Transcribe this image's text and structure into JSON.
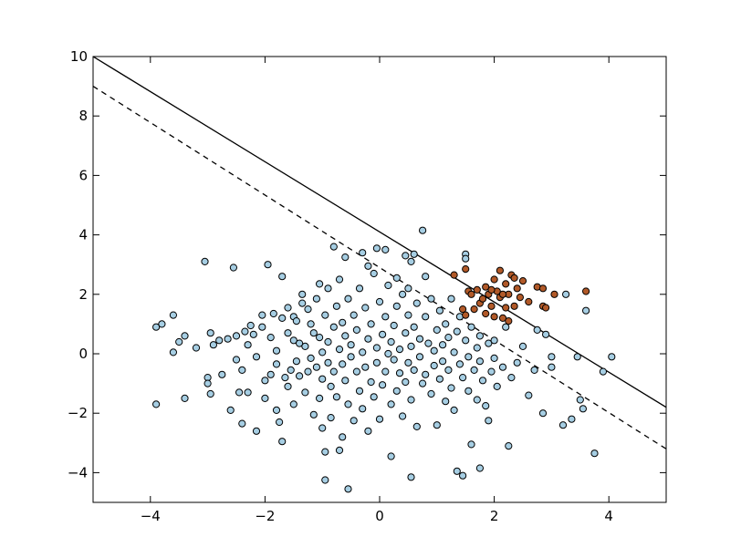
{
  "chart_data": {
    "type": "scatter",
    "title": "",
    "xlabel": "",
    "ylabel": "",
    "xlim": [
      -5,
      5
    ],
    "ylim": [
      -5,
      10
    ],
    "grid": false,
    "x_ticks": [
      -4,
      -2,
      0,
      2,
      4
    ],
    "x_tick_labels": [
      "−4",
      "−2",
      "0",
      "2",
      "4"
    ],
    "y_ticks": [
      -4,
      -2,
      0,
      2,
      4,
      6,
      8,
      10
    ],
    "y_tick_labels": [
      "−4",
      "−2",
      "0",
      "2",
      "4",
      "6",
      "8",
      "10"
    ],
    "colors": {
      "class_0_fill": "#a6cee3",
      "class_1_fill": "#b15928",
      "point_edge": "#000000",
      "line": "#000000",
      "frame": "#000000"
    },
    "lines": [
      {
        "style": "solid",
        "x": [
          -5,
          5
        ],
        "y": [
          10.0,
          -1.8
        ]
      },
      {
        "style": "dashed",
        "x": [
          -5,
          5
        ],
        "y": [
          9.0,
          -3.2
        ]
      }
    ],
    "series": [
      {
        "class": 0,
        "points": [
          [
            -3.9,
            -1.7
          ],
          [
            -3.9,
            0.9
          ],
          [
            -3.8,
            1.0
          ],
          [
            -3.6,
            1.3
          ],
          [
            -3.6,
            0.05
          ],
          [
            -3.5,
            0.4
          ],
          [
            -3.4,
            -1.5
          ],
          [
            -3.4,
            0.6
          ],
          [
            -3.2,
            0.2
          ],
          [
            -3.05,
            3.1
          ],
          [
            -3.0,
            -0.8
          ],
          [
            -3.0,
            -1.0
          ],
          [
            -2.95,
            0.7
          ],
          [
            -2.95,
            -1.35
          ],
          [
            -2.9,
            0.3
          ],
          [
            -2.8,
            0.45
          ],
          [
            -2.75,
            -0.7
          ],
          [
            -2.65,
            0.5
          ],
          [
            -2.6,
            -1.9
          ],
          [
            -2.55,
            2.9
          ],
          [
            -2.5,
            0.6
          ],
          [
            -2.5,
            -0.2
          ],
          [
            -2.45,
            -1.3
          ],
          [
            -2.4,
            -0.55
          ],
          [
            -2.4,
            -2.35
          ],
          [
            -2.35,
            0.75
          ],
          [
            -2.3,
            0.3
          ],
          [
            -2.3,
            -1.3
          ],
          [
            -2.25,
            0.95
          ],
          [
            -2.2,
            0.65
          ],
          [
            -2.15,
            -0.1
          ],
          [
            -2.15,
            -2.6
          ],
          [
            -2.05,
            0.9
          ],
          [
            -2.05,
            1.3
          ],
          [
            -2.0,
            -0.9
          ],
          [
            -2.0,
            -1.5
          ],
          [
            -1.95,
            3.0
          ],
          [
            -1.9,
            0.55
          ],
          [
            -1.9,
            -0.7
          ],
          [
            -1.85,
            1.35
          ],
          [
            -1.8,
            -0.35
          ],
          [
            -1.8,
            0.1
          ],
          [
            -1.8,
            -1.9
          ],
          [
            -1.75,
            -2.3
          ],
          [
            -1.7,
            1.2
          ],
          [
            -1.7,
            2.6
          ],
          [
            -1.7,
            -2.95
          ],
          [
            -1.65,
            -0.8
          ],
          [
            -1.6,
            0.7
          ],
          [
            -1.6,
            1.55
          ],
          [
            -1.6,
            -1.1
          ],
          [
            -1.55,
            -0.55
          ],
          [
            -1.5,
            0.45
          ],
          [
            -1.5,
            1.25
          ],
          [
            -1.5,
            -1.7
          ],
          [
            -1.45,
            -0.25
          ],
          [
            -1.45,
            1.1
          ],
          [
            -1.4,
            0.35
          ],
          [
            -1.4,
            -0.75
          ],
          [
            -1.35,
            1.7
          ],
          [
            -1.35,
            2.0
          ],
          [
            -1.3,
            -1.3
          ],
          [
            -1.3,
            0.25
          ],
          [
            -1.25,
            -0.6
          ],
          [
            -1.25,
            1.5
          ],
          [
            -1.2,
            -0.15
          ],
          [
            -1.2,
            1.0
          ],
          [
            -1.15,
            -2.05
          ],
          [
            -1.15,
            0.7
          ],
          [
            -1.1,
            -0.45
          ],
          [
            -1.1,
            1.85
          ],
          [
            -1.05,
            -1.5
          ],
          [
            -1.05,
            0.55
          ],
          [
            -1.05,
            2.35
          ],
          [
            -1.0,
            -0.85
          ],
          [
            -1.0,
            0.05
          ],
          [
            -1.0,
            -2.5
          ],
          [
            -0.95,
            1.3
          ],
          [
            -0.9,
            -0.3
          ],
          [
            -0.9,
            0.4
          ],
          [
            -0.9,
            2.2
          ],
          [
            -0.85,
            -1.1
          ],
          [
            -0.85,
            -2.15
          ],
          [
            -0.8,
            0.9
          ],
          [
            -0.8,
            -0.6
          ],
          [
            -0.75,
            1.6
          ],
          [
            -0.75,
            -1.45
          ],
          [
            -0.7,
            0.15
          ],
          [
            -0.7,
            2.5
          ],
          [
            -0.65,
            -0.35
          ],
          [
            -0.65,
            -2.8
          ],
          [
            -0.65,
            1.05
          ],
          [
            -0.6,
            -0.9
          ],
          [
            -0.6,
            0.6
          ],
          [
            -0.55,
            1.85
          ],
          [
            -0.55,
            -1.7
          ],
          [
            -0.5,
            -0.1
          ],
          [
            -0.5,
            0.3
          ],
          [
            -0.45,
            -2.25
          ],
          [
            -0.45,
            1.3
          ],
          [
            -0.4,
            -0.6
          ],
          [
            -0.4,
            0.8
          ],
          [
            -0.35,
            -1.25
          ],
          [
            -0.35,
            2.2
          ],
          [
            -0.3,
            0.05
          ],
          [
            -0.3,
            -1.85
          ],
          [
            -0.25,
            1.55
          ],
          [
            -0.25,
            -0.45
          ],
          [
            -0.2,
            0.5
          ],
          [
            -0.2,
            -2.6
          ],
          [
            -0.15,
            1.0
          ],
          [
            -0.15,
            -0.95
          ],
          [
            -0.1,
            -1.45
          ],
          [
            -0.1,
            2.7
          ],
          [
            -0.05,
            0.2
          ],
          [
            -0.05,
            -0.3
          ],
          [
            0.0,
            1.75
          ],
          [
            0.0,
            -2.2
          ],
          [
            0.05,
            0.65
          ],
          [
            0.05,
            -1.05
          ],
          [
            0.1,
            -0.6
          ],
          [
            0.1,
            1.25
          ],
          [
            0.15,
            0.0
          ],
          [
            0.15,
            2.3
          ],
          [
            0.2,
            -1.7
          ],
          [
            0.2,
            0.4
          ],
          [
            0.25,
            -0.2
          ],
          [
            0.25,
            0.95
          ],
          [
            0.3,
            -1.25
          ],
          [
            0.3,
            1.6
          ],
          [
            0.35,
            -0.65
          ],
          [
            0.35,
            0.15
          ],
          [
            0.4,
            2.0
          ],
          [
            0.4,
            -2.1
          ],
          [
            0.45,
            0.7
          ],
          [
            0.45,
            -0.95
          ],
          [
            0.5,
            -0.3
          ],
          [
            0.5,
            1.3
          ],
          [
            0.55,
            -1.55
          ],
          [
            0.55,
            0.25
          ],
          [
            0.6,
            0.9
          ],
          [
            0.6,
            -0.55
          ],
          [
            0.65,
            1.7
          ],
          [
            0.65,
            -2.45
          ],
          [
            0.7,
            0.5
          ],
          [
            0.7,
            -0.1
          ],
          [
            0.75,
            4.15
          ],
          [
            0.75,
            -1.0
          ],
          [
            0.8,
            1.25
          ],
          [
            0.8,
            -0.7
          ],
          [
            0.85,
            0.35
          ],
          [
            0.9,
            -1.35
          ],
          [
            0.9,
            1.85
          ],
          [
            0.95,
            0.1
          ],
          [
            0.95,
            -0.4
          ],
          [
            1.0,
            0.8
          ],
          [
            1.0,
            -2.4
          ],
          [
            1.05,
            -0.85
          ],
          [
            1.05,
            1.45
          ],
          [
            1.1,
            0.3
          ],
          [
            1.1,
            -0.25
          ],
          [
            1.15,
            -1.6
          ],
          [
            1.15,
            1.0
          ],
          [
            1.2,
            -0.55
          ],
          [
            1.2,
            0.55
          ],
          [
            1.25,
            -1.15
          ],
          [
            1.25,
            1.85
          ],
          [
            1.3,
            0.05
          ],
          [
            1.3,
            -1.9
          ],
          [
            1.35,
            0.75
          ],
          [
            1.35,
            -3.95
          ],
          [
            1.4,
            -0.35
          ],
          [
            1.4,
            1.25
          ],
          [
            1.45,
            -0.8
          ],
          [
            1.45,
            -4.1
          ],
          [
            1.5,
            0.45
          ],
          [
            1.5,
            3.35
          ],
          [
            1.5,
            3.2
          ],
          [
            1.55,
            -1.25
          ],
          [
            1.55,
            -0.1
          ],
          [
            1.6,
            -3.05
          ],
          [
            1.6,
            0.9
          ],
          [
            1.65,
            -0.55
          ],
          [
            1.7,
            0.2
          ],
          [
            1.7,
            -1.55
          ],
          [
            1.75,
            -0.25
          ],
          [
            1.75,
            0.6
          ],
          [
            1.8,
            -0.9
          ],
          [
            1.85,
            -1.75
          ],
          [
            1.9,
            0.35
          ],
          [
            1.9,
            -2.25
          ],
          [
            1.95,
            -0.6
          ],
          [
            2.0,
            -0.15
          ],
          [
            2.0,
            0.45
          ],
          [
            2.05,
            -1.1
          ],
          [
            2.15,
            -0.45
          ],
          [
            2.2,
            0.9
          ],
          [
            2.25,
            -3.1
          ],
          [
            2.3,
            -0.8
          ],
          [
            2.4,
            -0.3
          ],
          [
            2.5,
            0.25
          ],
          [
            2.6,
            -1.4
          ],
          [
            2.7,
            -0.55
          ],
          [
            2.75,
            0.8
          ],
          [
            2.85,
            -2.0
          ],
          [
            2.9,
            0.65
          ],
          [
            3.0,
            -0.1
          ],
          [
            3.0,
            -0.45
          ],
          [
            3.2,
            -2.4
          ],
          [
            3.25,
            2.0
          ],
          [
            3.35,
            -2.2
          ],
          [
            3.45,
            -0.1
          ],
          [
            3.5,
            -1.55
          ],
          [
            3.55,
            -1.85
          ],
          [
            3.6,
            1.45
          ],
          [
            3.75,
            -3.35
          ],
          [
            3.9,
            -0.6
          ],
          [
            4.05,
            -0.1
          ],
          [
            -0.8,
            3.6
          ],
          [
            -0.6,
            3.25
          ],
          [
            -0.3,
            3.4
          ],
          [
            -0.2,
            2.95
          ],
          [
            -0.05,
            3.55
          ],
          [
            0.1,
            3.5
          ],
          [
            0.45,
            3.3
          ],
          [
            0.6,
            3.35
          ],
          [
            0.55,
            3.1
          ],
          [
            0.3,
            2.55
          ],
          [
            0.8,
            2.6
          ],
          [
            0.5,
            2.2
          ],
          [
            0.2,
            -3.45
          ],
          [
            -0.95,
            -3.3
          ],
          [
            -0.7,
            -3.25
          ],
          [
            -0.95,
            -4.25
          ],
          [
            -0.55,
            -4.55
          ],
          [
            0.55,
            -4.15
          ],
          [
            1.75,
            -3.85
          ]
        ]
      },
      {
        "class": 1,
        "points": [
          [
            1.3,
            2.65
          ],
          [
            1.45,
            1.5
          ],
          [
            1.5,
            2.85
          ],
          [
            1.5,
            1.3
          ],
          [
            1.55,
            2.1
          ],
          [
            1.6,
            2.0
          ],
          [
            1.65,
            1.5
          ],
          [
            1.7,
            2.15
          ],
          [
            1.75,
            1.7
          ],
          [
            1.8,
            1.85
          ],
          [
            1.85,
            2.25
          ],
          [
            1.85,
            1.35
          ],
          [
            1.9,
            2.0
          ],
          [
            1.95,
            1.6
          ],
          [
            2.0,
            2.5
          ],
          [
            2.0,
            1.25
          ],
          [
            2.05,
            2.1
          ],
          [
            2.1,
            1.9
          ],
          [
            2.1,
            2.8
          ],
          [
            2.15,
            1.2
          ],
          [
            2.2,
            2.35
          ],
          [
            2.2,
            1.55
          ],
          [
            2.25,
            2.0
          ],
          [
            2.25,
            1.1
          ],
          [
            2.3,
            2.65
          ],
          [
            2.35,
            2.55
          ],
          [
            2.35,
            1.6
          ],
          [
            2.4,
            2.2
          ],
          [
            2.45,
            1.9
          ],
          [
            2.5,
            2.45
          ],
          [
            2.6,
            1.75
          ],
          [
            2.75,
            2.25
          ],
          [
            2.85,
            2.2
          ],
          [
            2.85,
            1.6
          ],
          [
            2.9,
            1.55
          ],
          [
            3.05,
            2.0
          ],
          [
            3.6,
            2.1
          ],
          [
            2.15,
            2.0
          ],
          [
            1.95,
            2.15
          ]
        ]
      }
    ]
  }
}
